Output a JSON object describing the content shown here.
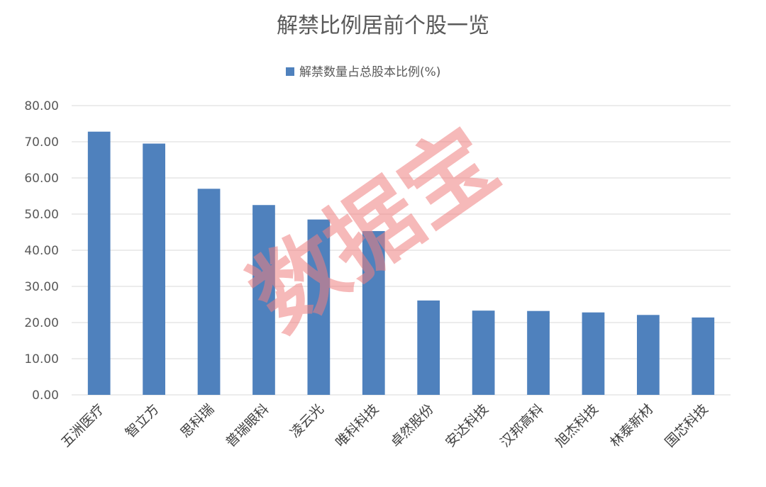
{
  "chart_data": {
    "type": "bar",
    "title": "解禁比例居前个股一览",
    "categories": [
      "五洲医疗",
      "智立方",
      "思科瑞",
      "普瑞眼科",
      "凌云光",
      "唯科科技",
      "卓然股份",
      "安达科技",
      "汉邦高科",
      "旭杰科技",
      "林泰新材",
      "国芯科技"
    ],
    "series": [
      {
        "name": "解禁数量占总股本比例(%)",
        "values": [
          72.8,
          69.5,
          57.0,
          52.5,
          48.5,
          45.3,
          26.1,
          23.3,
          23.2,
          22.8,
          22.1,
          21.4
        ]
      }
    ],
    "ylim": [
      0,
      80
    ],
    "yticks": [
      "0.00",
      "10.00",
      "20.00",
      "30.00",
      "40.00",
      "50.00",
      "60.00",
      "70.00",
      "80.00"
    ],
    "xlabel": "",
    "ylabel": "",
    "grid": true,
    "legend_position": "top-center",
    "bar_color": "#4f81bd"
  },
  "watermark": "数据宝"
}
